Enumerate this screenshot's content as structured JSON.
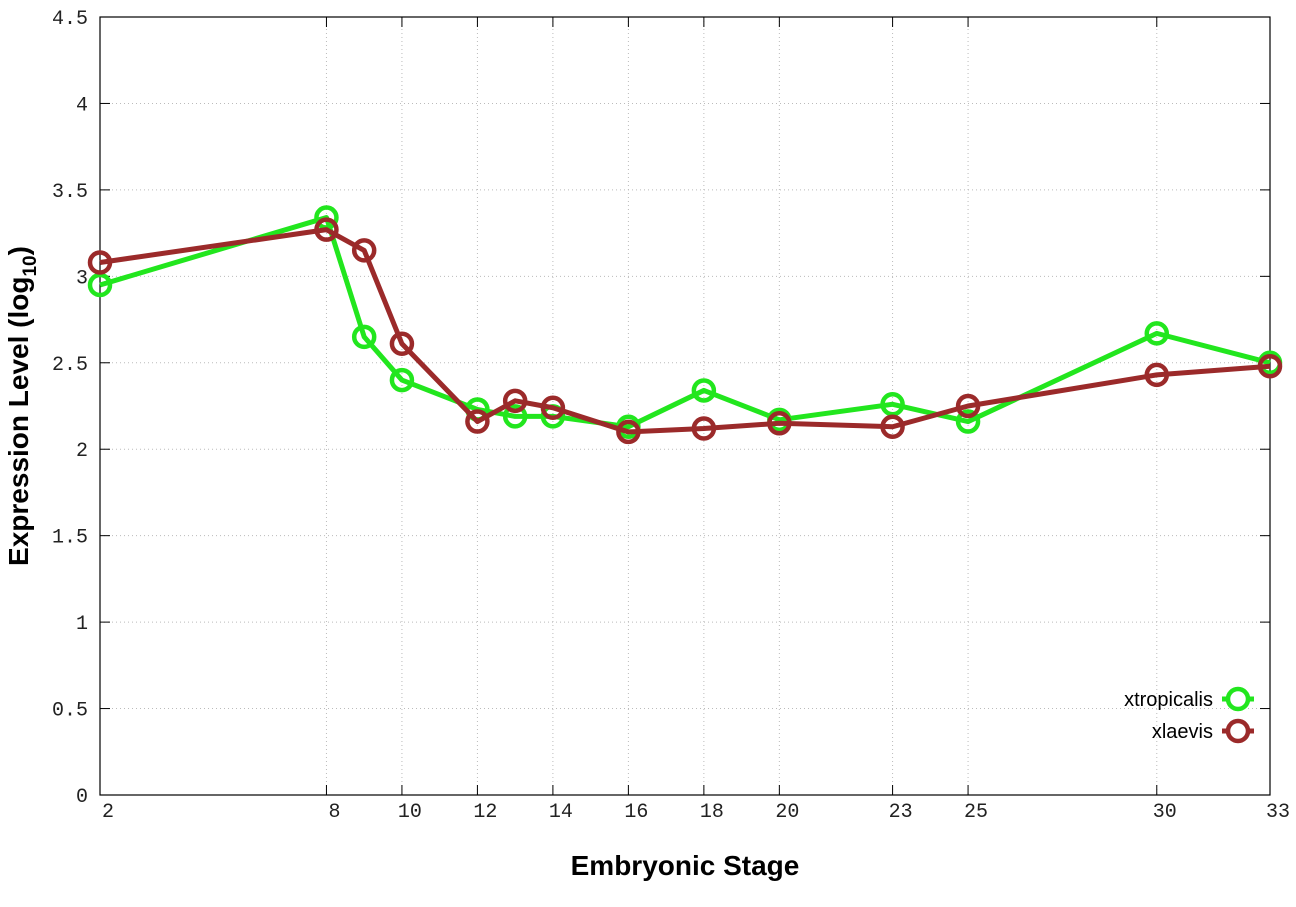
{
  "chart_data": {
    "type": "line",
    "xlabel": "Embryonic Stage",
    "ylabel": [
      "Expression Level (log",
      "10",
      ")"
    ],
    "x": [
      2,
      8,
      9,
      10,
      12,
      13,
      14,
      16,
      18,
      20,
      23,
      25,
      30,
      33
    ],
    "series": [
      {
        "name": "xtropicalis",
        "color": "#22e61e",
        "values": [
          2.95,
          3.34,
          2.65,
          2.4,
          2.23,
          2.19,
          2.19,
          2.13,
          2.34,
          2.17,
          2.26,
          2.16,
          2.67,
          2.5
        ]
      },
      {
        "name": "xlaevis",
        "color": "#9b2a2a",
        "values": [
          3.08,
          3.27,
          3.15,
          2.61,
          2.16,
          2.28,
          2.24,
          2.1,
          2.12,
          2.15,
          2.13,
          2.25,
          2.43,
          2.48
        ]
      }
    ],
    "xlim": [
      2,
      33
    ],
    "xticks": [
      2,
      8,
      10,
      12,
      14,
      16,
      18,
      20,
      23,
      25,
      30,
      33
    ],
    "ylim": [
      0,
      4.5
    ],
    "yticks": [
      0,
      0.5,
      1,
      1.5,
      2,
      2.5,
      3,
      3.5,
      4,
      4.5
    ],
    "grid": true,
    "legend": "bottom-right"
  }
}
